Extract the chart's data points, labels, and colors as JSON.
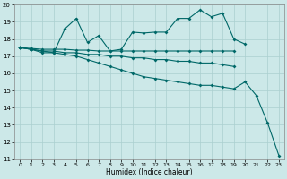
{
  "xlabel": "Humidex (Indice chaleur)",
  "background_color": "#cce8e8",
  "grid_color": "#aacfcf",
  "line_color": "#006868",
  "x_values": [
    0,
    1,
    2,
    3,
    4,
    5,
    6,
    7,
    8,
    9,
    10,
    11,
    12,
    13,
    14,
    15,
    16,
    17,
    18,
    19,
    20,
    21,
    22,
    23
  ],
  "line1": [
    17.5,
    17.4,
    17.2,
    17.2,
    18.6,
    19.2,
    17.8,
    18.2,
    17.3,
    17.4,
    18.4,
    18.35,
    18.4,
    18.4,
    19.2,
    19.2,
    19.7,
    19.3,
    19.5,
    18.0,
    17.7,
    null,
    null,
    null
  ],
  "line2": [
    17.5,
    17.45,
    17.4,
    17.4,
    17.4,
    17.35,
    17.35,
    17.3,
    17.3,
    17.3,
    17.3,
    17.3,
    17.3,
    17.3,
    17.3,
    17.3,
    17.3,
    17.3,
    17.3,
    17.3,
    null,
    null,
    null,
    null
  ],
  "line3": [
    17.5,
    17.4,
    17.3,
    17.3,
    17.2,
    17.2,
    17.1,
    17.1,
    17.0,
    17.0,
    16.9,
    16.9,
    16.8,
    16.8,
    16.7,
    16.7,
    16.6,
    16.6,
    16.5,
    16.4,
    null,
    null,
    null,
    null
  ],
  "line4": [
    17.5,
    17.4,
    17.3,
    17.2,
    17.1,
    17.0,
    16.8,
    16.6,
    16.4,
    16.2,
    16.0,
    15.8,
    15.7,
    15.6,
    15.5,
    15.4,
    15.3,
    15.3,
    15.2,
    15.1,
    15.5,
    14.7,
    13.1,
    11.2
  ],
  "ylim": [
    11,
    20
  ],
  "xlim": [
    -0.5,
    23.5
  ],
  "yticks": [
    11,
    12,
    13,
    14,
    15,
    16,
    17,
    18,
    19,
    20
  ],
  "xticks": [
    0,
    1,
    2,
    3,
    4,
    5,
    6,
    7,
    8,
    9,
    10,
    11,
    12,
    13,
    14,
    15,
    16,
    17,
    18,
    19,
    20,
    21,
    22,
    23
  ]
}
